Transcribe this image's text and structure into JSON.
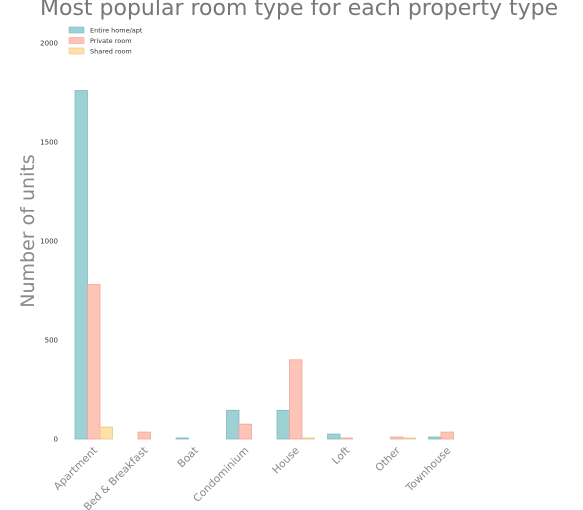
{
  "chart_data": {
    "type": "bar",
    "title": "Most popular room type for each property type",
    "xlabel": "",
    "ylabel": "Number of units",
    "ylim": [
      0,
      2000
    ],
    "yticks": [
      0,
      500,
      1000,
      1500,
      2000
    ],
    "grid": false,
    "legend_position": "top-left",
    "categories": [
      "Apartment",
      "Bed & Breakfast",
      "Boat",
      "Condominium",
      "House",
      "Loft",
      "Other",
      "Townhouse"
    ],
    "series": [
      {
        "name": "Entire home/apt",
        "color": "#9dd1d4",
        "edge": "#7fbcc0",
        "values": [
          1760,
          0,
          5,
          145,
          145,
          25,
          0,
          10
        ]
      },
      {
        "name": "Private room",
        "color": "#ffc4b8",
        "edge": "#eea89a",
        "values": [
          780,
          35,
          0,
          75,
          400,
          5,
          10,
          35
        ]
      },
      {
        "name": "Shared room",
        "color": "#ffe0a8",
        "edge": "#e8c788",
        "values": [
          60,
          0,
          0,
          0,
          5,
          0,
          5,
          0
        ]
      }
    ]
  }
}
